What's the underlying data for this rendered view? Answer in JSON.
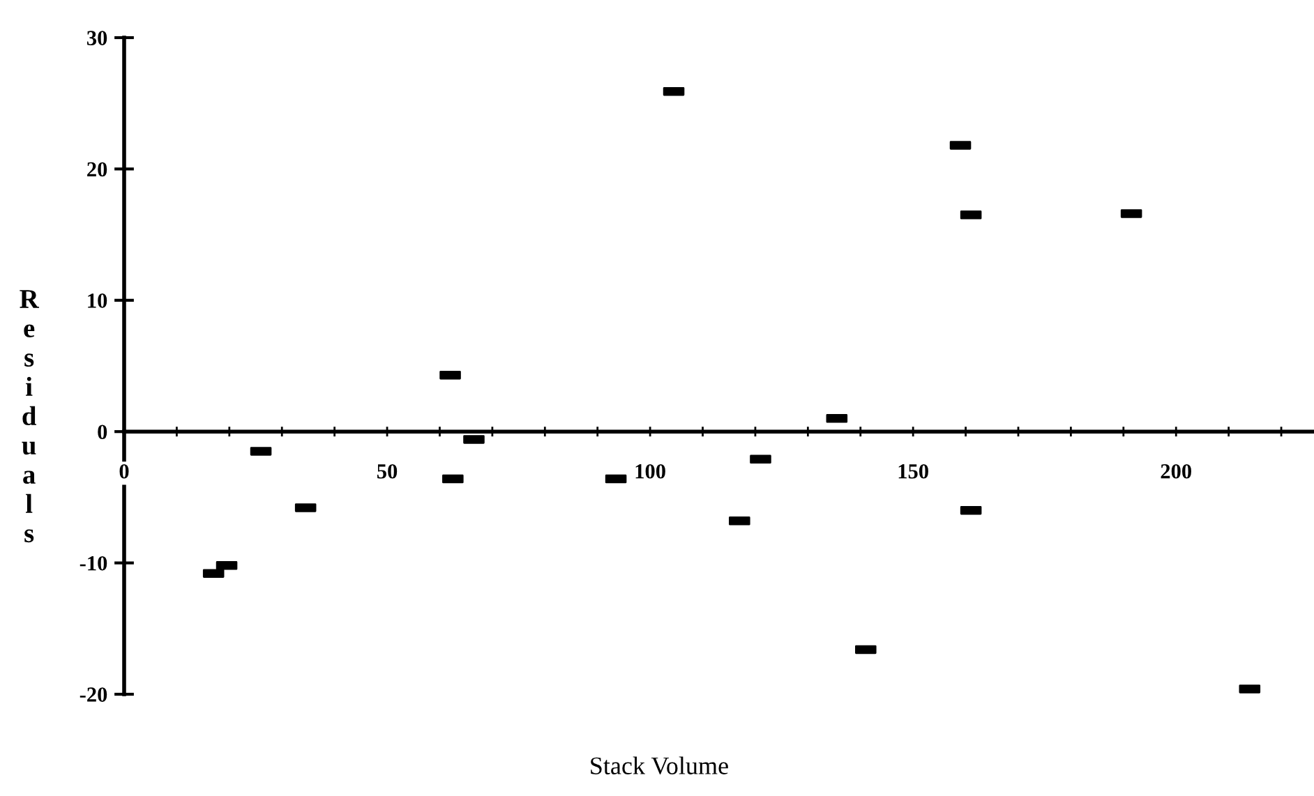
{
  "chart_data": {
    "type": "scatter",
    "xlabel": "Stack Volume",
    "ylabel": "Residuals",
    "x": [
      17,
      19.5,
      26,
      34.5,
      62,
      62.5,
      66.5,
      93.5,
      104.5,
      117,
      121,
      135.5,
      141,
      159,
      161,
      161,
      191.5,
      214
    ],
    "series": [
      {
        "color": "#000000",
        "values": [
          -10.8,
          -10.2,
          -1.5,
          -5.8,
          4.3,
          -3.6,
          -0.6,
          -3.6,
          25.9,
          -6.8,
          -2.1,
          1.0,
          -16.6,
          21.8,
          16.5,
          -6.0,
          16.6,
          -19.6
        ]
      }
    ],
    "marker": "square",
    "xlim": [
      0,
      226
    ],
    "ylim": [
      -20,
      30
    ],
    "xticks": [
      0,
      {
        "value": 10,
        "label": null
      },
      {
        "value": 20,
        "label": null
      },
      {
        "value": 30,
        "label": null
      },
      {
        "value": 40,
        "label": null
      },
      50,
      {
        "value": 60,
        "label": null
      },
      {
        "value": 70,
        "label": null
      },
      {
        "value": 80,
        "label": null
      },
      {
        "value": 90,
        "label": null
      },
      100,
      {
        "value": 110,
        "label": null
      },
      {
        "value": 120,
        "label": null
      },
      {
        "value": 130,
        "label": null
      },
      {
        "value": 140,
        "label": null
      },
      150,
      {
        "value": 160,
        "label": null
      },
      {
        "value": 170,
        "label": null
      },
      {
        "value": 180,
        "label": null
      },
      {
        "value": 190,
        "label": null
      },
      200,
      {
        "value": 210,
        "label": null
      },
      {
        "value": 220,
        "label": null
      }
    ],
    "yticks": [
      -20,
      -10,
      0,
      10,
      20,
      30
    ],
    "grid": false
  }
}
